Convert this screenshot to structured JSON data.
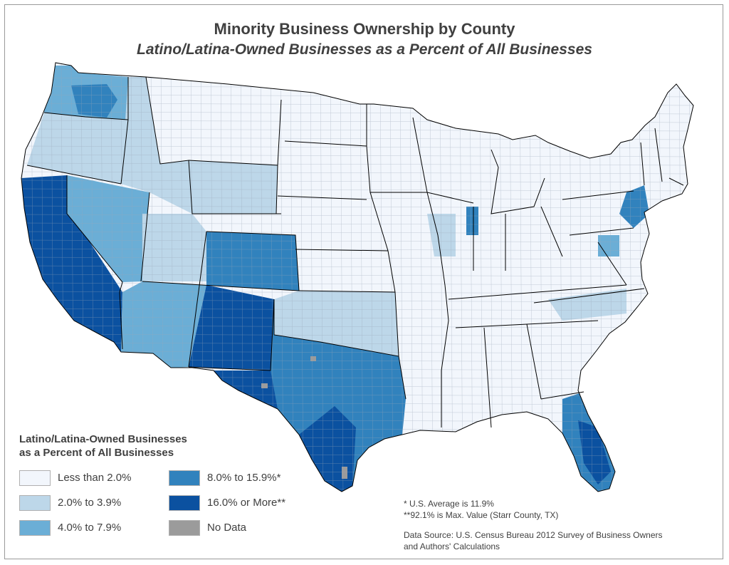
{
  "title": "Minority Business Ownership by County",
  "subtitle": "Latino/Latina-Owned Businesses as a Percent of All Businesses",
  "legend": {
    "title_line1": "Latino/Latina-Owned Businesses",
    "title_line2": "as a Percent of All Businesses",
    "items": [
      {
        "label": "Less than 2.0%",
        "color": "#f2f6fc"
      },
      {
        "label": "2.0% to 3.9%",
        "color": "#bdd7e9"
      },
      {
        "label": "4.0% to 7.9%",
        "color": "#6baed6"
      },
      {
        "label": "8.0% to 15.9%*",
        "color": "#3182bd"
      },
      {
        "label": "16.0% or More**",
        "color": "#0b51a0"
      },
      {
        "label": "No Data",
        "color": "#9b9b9b"
      }
    ]
  },
  "notes": {
    "us_average": "*  U.S. Average is 11.9%",
    "max_value": "**92.1% is Max. Value (Starr County, TX)",
    "source_line1": "Data Source: U.S. Census Bureau 2012 Survey of Business Owners",
    "source_line2": "and Authors' Calculations"
  },
  "colors": {
    "state_border": "#000000",
    "county_border": "#9aa7b8"
  }
}
